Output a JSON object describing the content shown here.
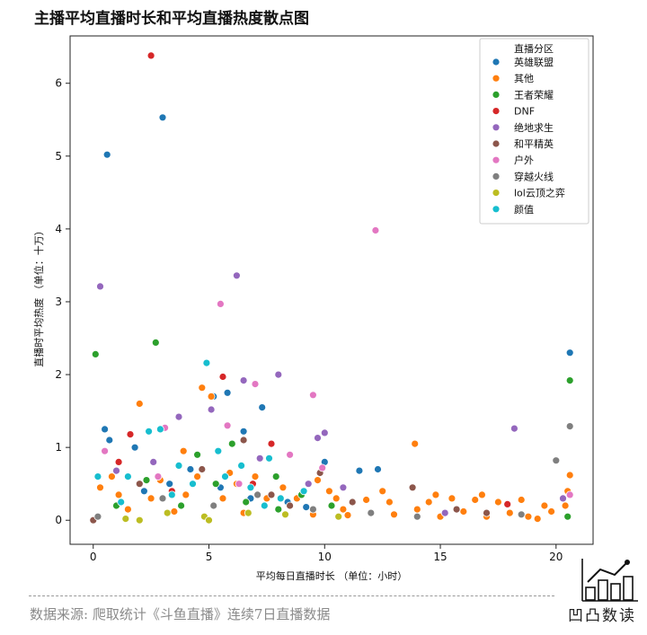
{
  "title": "主播平均直播时长和平均直播热度散点图",
  "source_note": "数据来源: 爬取统计《斗鱼直播》连续7日直播数据",
  "brand": "凹凸数读",
  "colors": {
    "英雄联盟": "#1f77b4",
    "其他": "#ff7f0e",
    "王者荣耀": "#2ca02c",
    "DNF": "#d62728",
    "绝地求生": "#9467bd",
    "和平精英": "#8c564b",
    "户外": "#e377c2",
    "穿越火线": "#7f7f7f",
    "lol云顶之弈": "#bcbd22",
    "颜值": "#17becf"
  },
  "chart_data": {
    "type": "scatter",
    "title": "主播平均直播时长和平均直播热度散点图",
    "xlabel": "平均每日直播时长 （单位：小时）",
    "ylabel": "直播时平均热度 （单位：十万）",
    "xlim": [
      -1,
      21.6
    ],
    "ylim": [
      -0.33,
      6.65
    ],
    "xticks": [
      0,
      5,
      10,
      15,
      20
    ],
    "yticks": [
      0,
      1,
      2,
      3,
      4,
      5,
      6
    ],
    "grid": false,
    "legend": {
      "title": "直播分区",
      "placement": "top-right",
      "entries": [
        "英雄联盟",
        "其他",
        "王者荣耀",
        "DNF",
        "绝地求生",
        "和平精英",
        "户外",
        "穿越火线",
        "lol云顶之弈",
        "颜值"
      ]
    },
    "series": [
      {
        "name": "英雄联盟",
        "points": [
          [
            0.6,
            5.02
          ],
          [
            3.0,
            5.53
          ],
          [
            0.5,
            1.25
          ],
          [
            0.7,
            1.1
          ],
          [
            1.8,
            1.0
          ],
          [
            4.2,
            0.7
          ],
          [
            5.2,
            1.7
          ],
          [
            5.8,
            1.75
          ],
          [
            6.5,
            1.22
          ],
          [
            7.3,
            1.55
          ],
          [
            10.0,
            0.8
          ],
          [
            11.5,
            0.68
          ],
          [
            12.3,
            0.7
          ],
          [
            20.6,
            2.3
          ],
          [
            3.3,
            0.5
          ],
          [
            5.5,
            0.45
          ],
          [
            6.8,
            0.3
          ],
          [
            8.4,
            0.25
          ],
          [
            9.2,
            0.18
          ],
          [
            2.2,
            0.4
          ]
        ]
      },
      {
        "name": "其他",
        "points": [
          [
            2.0,
            1.6
          ],
          [
            3.1,
            1.27
          ],
          [
            4.7,
            1.82
          ],
          [
            5.1,
            1.7
          ],
          [
            3.9,
            0.95
          ],
          [
            13.9,
            1.05
          ],
          [
            20.6,
            0.62
          ],
          [
            6.2,
            0.5
          ],
          [
            0.3,
            0.45
          ],
          [
            1.1,
            0.35
          ],
          [
            2.5,
            0.3
          ],
          [
            4.0,
            0.35
          ],
          [
            5.6,
            0.3
          ],
          [
            7.5,
            0.3
          ],
          [
            8.8,
            0.3
          ],
          [
            10.5,
            0.3
          ],
          [
            11.8,
            0.28
          ],
          [
            12.8,
            0.25
          ],
          [
            14.5,
            0.25
          ],
          [
            15.5,
            0.3
          ],
          [
            16.5,
            0.28
          ],
          [
            17.5,
            0.25
          ],
          [
            18.5,
            0.28
          ],
          [
            19.5,
            0.2
          ],
          [
            20.4,
            0.2
          ],
          [
            14.0,
            0.15
          ],
          [
            16.0,
            0.12
          ],
          [
            18.0,
            0.1
          ],
          [
            19.8,
            0.12
          ],
          [
            12.0,
            0.1
          ],
          [
            13.0,
            0.08
          ],
          [
            15.0,
            0.05
          ],
          [
            17.0,
            0.05
          ],
          [
            1.5,
            0.15
          ],
          [
            3.5,
            0.12
          ],
          [
            6.5,
            0.1
          ],
          [
            9.5,
            0.08
          ],
          [
            11.0,
            0.07
          ],
          [
            7.0,
            0.6
          ],
          [
            8.2,
            0.45
          ],
          [
            9.7,
            0.55
          ],
          [
            10.2,
            0.4
          ],
          [
            4.5,
            0.6
          ],
          [
            5.9,
            0.65
          ],
          [
            2.9,
            0.55
          ],
          [
            0.8,
            0.6
          ],
          [
            20.5,
            0.4
          ],
          [
            10.8,
            0.15
          ],
          [
            12.5,
            0.4
          ],
          [
            14.8,
            0.35
          ],
          [
            16.8,
            0.35
          ],
          [
            18.8,
            0.05
          ],
          [
            19.2,
            0.02
          ]
        ]
      },
      {
        "name": "王者荣耀",
        "points": [
          [
            0.1,
            2.28
          ],
          [
            2.7,
            2.44
          ],
          [
            20.6,
            1.92
          ],
          [
            4.5,
            0.9
          ],
          [
            6.0,
            1.05
          ],
          [
            7.9,
            0.6
          ],
          [
            2.3,
            0.55
          ],
          [
            5.3,
            0.5
          ],
          [
            9.0,
            0.35
          ],
          [
            10.3,
            0.2
          ],
          [
            6.6,
            0.25
          ],
          [
            3.8,
            0.2
          ],
          [
            8.0,
            0.15
          ],
          [
            1.0,
            0.2
          ],
          [
            20.5,
            0.05
          ]
        ]
      },
      {
        "name": "DNF",
        "points": [
          [
            2.5,
            6.38
          ],
          [
            5.6,
            1.97
          ],
          [
            7.7,
            1.05
          ],
          [
            1.1,
            0.8
          ],
          [
            1.6,
            1.18
          ],
          [
            6.9,
            0.5
          ],
          [
            3.4,
            0.4
          ],
          [
            17.9,
            0.22
          ]
        ]
      },
      {
        "name": "绝地求生",
        "points": [
          [
            0.3,
            3.21
          ],
          [
            6.2,
            3.36
          ],
          [
            8.0,
            2.0
          ],
          [
            6.5,
            1.92
          ],
          [
            5.1,
            1.52
          ],
          [
            9.7,
            1.13
          ],
          [
            10.0,
            1.2
          ],
          [
            18.2,
            1.26
          ],
          [
            10.8,
            0.45
          ],
          [
            1.0,
            0.68
          ],
          [
            3.7,
            1.42
          ],
          [
            7.2,
            0.85
          ],
          [
            9.3,
            0.5
          ],
          [
            15.2,
            0.1
          ],
          [
            20.3,
            0.3
          ],
          [
            2.6,
            0.8
          ]
        ]
      },
      {
        "name": "和平精英",
        "points": [
          [
            6.5,
            1.1
          ],
          [
            9.8,
            0.65
          ],
          [
            13.8,
            0.45
          ],
          [
            2.0,
            0.5
          ],
          [
            4.7,
            0.7
          ],
          [
            7.7,
            0.35
          ],
          [
            11.2,
            0.25
          ],
          [
            15.7,
            0.15
          ],
          [
            17.0,
            0.1
          ],
          [
            0.0,
            0.0
          ],
          [
            8.5,
            0.2
          ]
        ]
      },
      {
        "name": "户外",
        "points": [
          [
            12.2,
            3.98
          ],
          [
            5.5,
            2.97
          ],
          [
            7.0,
            1.87
          ],
          [
            9.5,
            1.72
          ],
          [
            3.1,
            1.27
          ],
          [
            5.8,
            1.3
          ],
          [
            0.5,
            0.95
          ],
          [
            8.5,
            0.9
          ],
          [
            9.9,
            0.72
          ],
          [
            20.6,
            0.35
          ],
          [
            6.3,
            0.5
          ],
          [
            2.8,
            0.6
          ]
        ]
      },
      {
        "name": "穿越火线",
        "points": [
          [
            20.6,
            1.29
          ],
          [
            20.0,
            0.82
          ],
          [
            7.1,
            0.35
          ],
          [
            3.0,
            0.3
          ],
          [
            5.2,
            0.2
          ],
          [
            9.5,
            0.15
          ],
          [
            12.0,
            0.1
          ],
          [
            0.2,
            0.05
          ],
          [
            14.0,
            0.05
          ],
          [
            18.5,
            0.08
          ]
        ]
      },
      {
        "name": "lol云顶之弈",
        "points": [
          [
            4.8,
            0.05
          ],
          [
            6.7,
            0.1
          ],
          [
            3.2,
            0.1
          ],
          [
            8.3,
            0.08
          ],
          [
            1.4,
            0.02
          ],
          [
            10.6,
            0.05
          ],
          [
            5.0,
            0.0
          ],
          [
            2.0,
            0.0
          ]
        ]
      },
      {
        "name": "颜值",
        "points": [
          [
            4.9,
            2.16
          ],
          [
            2.4,
            1.22
          ],
          [
            7.6,
            0.85
          ],
          [
            5.7,
            0.6
          ],
          [
            1.5,
            0.6
          ],
          [
            3.7,
            0.75
          ],
          [
            6.4,
            0.75
          ],
          [
            2.9,
            1.25
          ],
          [
            4.3,
            0.5
          ],
          [
            0.2,
            0.6
          ],
          [
            8.1,
            0.3
          ],
          [
            9.1,
            0.4
          ],
          [
            6.8,
            0.45
          ],
          [
            3.4,
            0.35
          ],
          [
            1.2,
            0.25
          ],
          [
            5.4,
            0.95
          ],
          [
            7.4,
            0.2
          ]
        ]
      }
    ]
  }
}
